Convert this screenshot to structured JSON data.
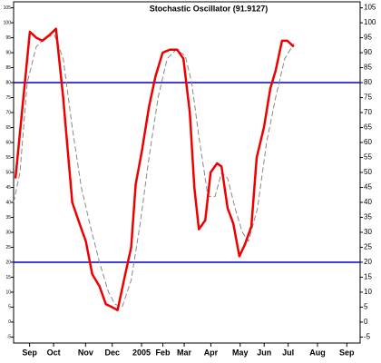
{
  "chart_data": {
    "type": "line",
    "title": "Stochastic Oscillator (91.9127)",
    "xlim": [
      0,
      13
    ],
    "xticks": [
      {
        "value": 0.6,
        "label": "Sep"
      },
      {
        "value": 1.5,
        "label": "Oct"
      },
      {
        "value": 2.7,
        "label": "Nov"
      },
      {
        "value": 3.7,
        "label": "Dec"
      },
      {
        "value": 4.8,
        "label": "2005"
      },
      {
        "value": 5.6,
        "label": "Feb"
      },
      {
        "value": 6.4,
        "label": "Mar"
      },
      {
        "value": 7.4,
        "label": "Apr"
      },
      {
        "value": 8.5,
        "label": "May"
      },
      {
        "value": 9.4,
        "label": "Jun"
      },
      {
        "value": 10.3,
        "label": "Jul"
      },
      {
        "value": 11.4,
        "label": "Aug"
      },
      {
        "value": 12.5,
        "label": "Sep"
      }
    ],
    "ylim": [
      -7,
      107
    ],
    "yticks": [
      -5,
      0,
      5,
      10,
      15,
      20,
      25,
      30,
      35,
      40,
      45,
      50,
      55,
      60,
      65,
      70,
      75,
      80,
      85,
      90,
      95,
      100,
      105
    ],
    "reference_lines": [
      80,
      20
    ],
    "reference_color": "#0000cc",
    "series": [
      {
        "color": "#888888",
        "dashed": true,
        "x": [
          0,
          0.24,
          0.51,
          0.85,
          1.19,
          1.53,
          1.86,
          2.2,
          2.54,
          2.88,
          3.22,
          3.56,
          3.8,
          4.07,
          4.41,
          4.75,
          5.08,
          5.42,
          5.76,
          6.1,
          6.44,
          6.68,
          6.95,
          7.29,
          7.56,
          7.8,
          8.03,
          8.31,
          8.58,
          8.81,
          9.15,
          9.49,
          9.83,
          10.17,
          10.51
        ],
        "values": [
          40,
          50,
          80,
          92,
          95,
          96,
          88,
          65,
          45,
          32,
          20,
          10,
          6,
          5,
          14,
          33,
          55,
          75,
          88,
          91,
          89,
          80,
          62,
          42,
          42,
          50,
          48,
          38,
          30,
          27,
          38,
          60,
          75,
          88,
          93
        ]
      },
      {
        "color": "#ee0000",
        "dashed": false,
        "x": [
          0.07,
          0.61,
          0.85,
          1.08,
          1.36,
          1.59,
          1.86,
          2.2,
          2.47,
          2.71,
          2.95,
          3.22,
          3.46,
          3.69,
          3.9,
          4.14,
          4.41,
          4.58,
          4.81,
          5.08,
          5.32,
          5.59,
          5.86,
          6.14,
          6.37,
          6.61,
          6.78,
          6.95,
          7.19,
          7.39,
          7.63,
          7.8,
          8.03,
          8.24,
          8.47,
          8.68,
          8.92,
          9.12,
          9.39,
          9.63,
          9.83,
          10.07,
          10.27,
          10.51
        ],
        "values": [
          48,
          97,
          95,
          94,
          96,
          98,
          75,
          40,
          33,
          27,
          16,
          12,
          6,
          5,
          4,
          14,
          25,
          46,
          57,
          72,
          82,
          90,
          91,
          91,
          88,
          70,
          45,
          31,
          34,
          50,
          53,
          52,
          38,
          33,
          22,
          26,
          32,
          55,
          65,
          78,
          84,
          94,
          94,
          92
        ]
      }
    ]
  }
}
